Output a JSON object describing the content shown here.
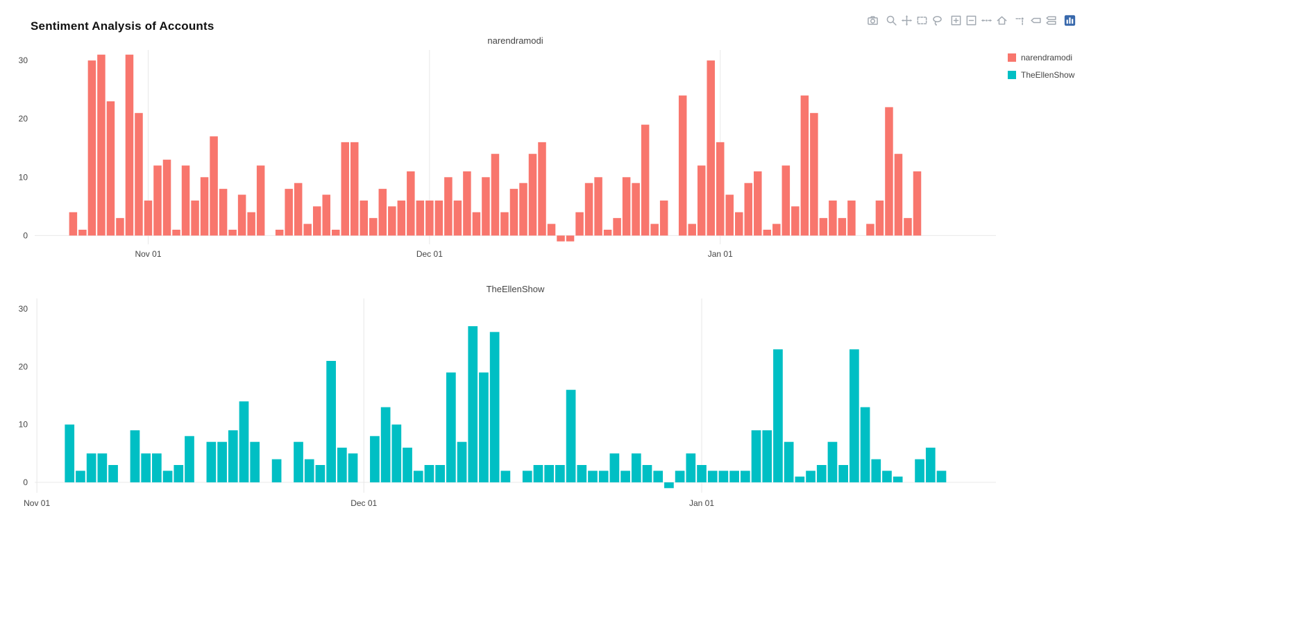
{
  "page": {
    "title": "Sentiment Analysis of Accounts"
  },
  "modebar": {
    "groups": [
      [
        "camera"
      ],
      [
        "zoom",
        "pan",
        "box-select",
        "lasso-select"
      ],
      [
        "zoom-in",
        "zoom-out",
        "autoscale",
        "reset-axes"
      ],
      [
        "toggle-spikelines",
        "hover-closest",
        "hover-compare"
      ],
      [
        "plotly-logo"
      ]
    ]
  },
  "legend": {
    "items": [
      {
        "label": "narendramodi",
        "color": "#F8766D"
      },
      {
        "label": "TheEllenShow",
        "color": "#00BFC4"
      }
    ]
  },
  "chart_data": [
    {
      "type": "bar",
      "title": "narendramodi",
      "series_name": "narendramodi",
      "color": "#F8766D",
      "x_first_bar": "Oct 24",
      "x_interval": "1 day",
      "values": [
        4,
        1,
        30,
        31,
        23,
        3,
        31,
        21,
        6,
        12,
        13,
        1,
        12,
        6,
        10,
        17,
        8,
        1,
        7,
        4,
        12,
        null,
        1,
        8,
        9,
        2,
        5,
        7,
        1,
        16,
        16,
        6,
        3,
        8,
        5,
        6,
        11,
        6,
        6,
        6,
        10,
        6,
        11,
        4,
        10,
        14,
        4,
        8,
        9,
        14,
        16,
        2,
        -1,
        -1,
        4,
        9,
        10,
        1,
        3,
        10,
        9,
        19,
        2,
        6,
        null,
        24,
        2,
        12,
        30,
        16,
        7,
        4,
        9,
        11,
        1,
        2,
        12,
        5,
        24,
        21,
        3,
        6,
        3,
        6,
        null,
        2,
        6,
        22,
        14,
        3,
        11
      ],
      "xticks": [
        {
          "label": "Nov 01",
          "index": 8
        },
        {
          "label": "Dec 01",
          "index": 38
        },
        {
          "label": "Jan 01",
          "index": 69
        }
      ],
      "x_index_range": [
        -4.1,
        98.4
      ],
      "yticks": [
        0,
        10,
        20,
        30
      ],
      "ylim": [
        -1.5,
        31.8
      ],
      "xlabel": "",
      "ylabel": "",
      "grid": "vertical-month-lines",
      "legend_position": "right"
    },
    {
      "type": "bar",
      "title": "TheEllenShow",
      "series_name": "TheEllenShow",
      "color": "#00BFC4",
      "x_first_bar": "Nov 04",
      "x_interval": "1 day",
      "values": [
        10,
        2,
        5,
        5,
        3,
        null,
        9,
        5,
        5,
        2,
        3,
        8,
        null,
        7,
        7,
        9,
        14,
        7,
        null,
        4,
        null,
        7,
        4,
        3,
        21,
        6,
        5,
        null,
        8,
        13,
        10,
        6,
        2,
        3,
        3,
        19,
        7,
        27,
        19,
        26,
        2,
        null,
        2,
        3,
        3,
        3,
        16,
        3,
        2,
        2,
        5,
        2,
        5,
        3,
        2,
        -1,
        2,
        5,
        3,
        2,
        2,
        2,
        2,
        9,
        9,
        23,
        7,
        1,
        2,
        3,
        7,
        3,
        23,
        13,
        4,
        2,
        1,
        null,
        4,
        6,
        2
      ],
      "xticks": [
        {
          "label": "Nov 01",
          "index": -3
        },
        {
          "label": "Dec 01",
          "index": 27
        },
        {
          "label": "Jan 01",
          "index": 58
        }
      ],
      "x_index_range": [
        -3.2,
        85.0
      ],
      "yticks": [
        0,
        10,
        20,
        30
      ],
      "ylim": [
        -1.8,
        31.8
      ],
      "xlabel": "",
      "ylabel": "",
      "grid": "vertical-month-lines",
      "legend_position": "right"
    }
  ]
}
